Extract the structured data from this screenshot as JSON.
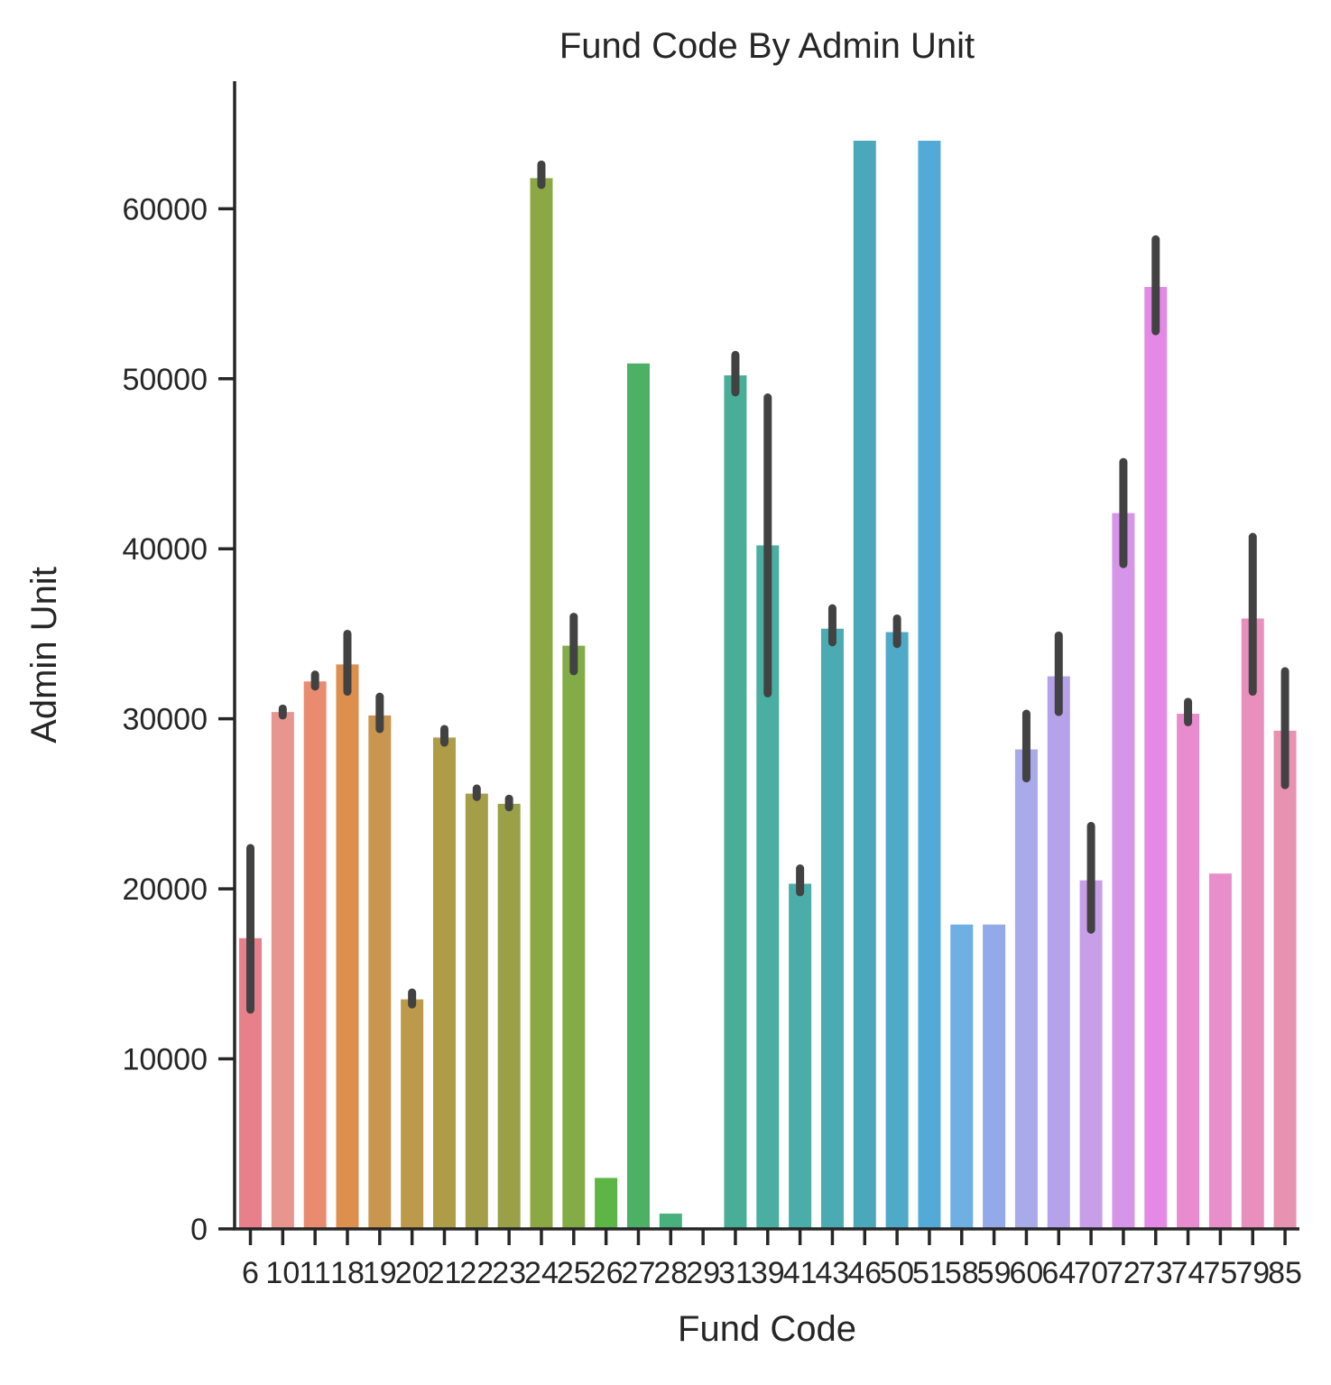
{
  "chart_data": {
    "type": "bar",
    "title": "Fund Code By Admin Unit",
    "xlabel": "Fund Code",
    "ylabel": "Admin Unit",
    "ylim": [
      0,
      67500
    ],
    "yticks": [
      0,
      10000,
      20000,
      30000,
      40000,
      50000,
      60000
    ],
    "grid": false,
    "categories": [
      "6",
      "10",
      "11",
      "18",
      "19",
      "20",
      "21",
      "22",
      "23",
      "24",
      "25",
      "26",
      "27",
      "28",
      "29",
      "31",
      "39",
      "41",
      "43",
      "46",
      "50",
      "51",
      "58",
      "59",
      "60",
      "64",
      "70",
      "72",
      "73",
      "74",
      "75",
      "79",
      "85"
    ],
    "values": [
      17100,
      30400,
      32200,
      33200,
      30200,
      13500,
      28900,
      25600,
      25000,
      61800,
      34300,
      3000,
      50900,
      900,
      0,
      50200,
      40200,
      20300,
      35300,
      64000,
      35100,
      64000,
      17900,
      17900,
      28200,
      32500,
      20500,
      42100,
      55400,
      30300,
      20900,
      35900,
      29300
    ],
    "error_low": [
      12900,
      30200,
      31900,
      31600,
      29400,
      13200,
      28600,
      25400,
      24800,
      61400,
      32800,
      null,
      null,
      null,
      null,
      49200,
      31500,
      19800,
      34500,
      null,
      34400,
      null,
      null,
      null,
      26500,
      30400,
      17600,
      39100,
      52800,
      29800,
      null,
      31600,
      26100
    ],
    "error_high": [
      22400,
      30600,
      32600,
      35000,
      31300,
      13900,
      29400,
      25900,
      25300,
      62600,
      36000,
      null,
      null,
      null,
      null,
      51400,
      48900,
      21200,
      36500,
      null,
      35900,
      null,
      null,
      null,
      30300,
      34900,
      23700,
      45100,
      58200,
      31000,
      null,
      40700,
      32800
    ],
    "colors": [
      "#e8808b",
      "#e8958f",
      "#e98b6f",
      "#dd8f4d",
      "#c8964e",
      "#bd9a4a",
      "#ae9c47",
      "#a49e49",
      "#9aa047",
      "#8ca845",
      "#82ad46",
      "#5cb545",
      "#4cb065",
      "#48b07d",
      "#4aaf8d",
      "#49ae98",
      "#4aaea2",
      "#4aada9",
      "#4aacb2",
      "#4ba8ba",
      "#4eaac8",
      "#52abd6",
      "#6fb0e4",
      "#92abe8",
      "#a8aaea",
      "#b6a2eb",
      "#c79ee8",
      "#d595e8",
      "#e48ae6",
      "#e88ccf",
      "#e88fcb",
      "#e98fbd",
      "#e892b2"
    ]
  }
}
